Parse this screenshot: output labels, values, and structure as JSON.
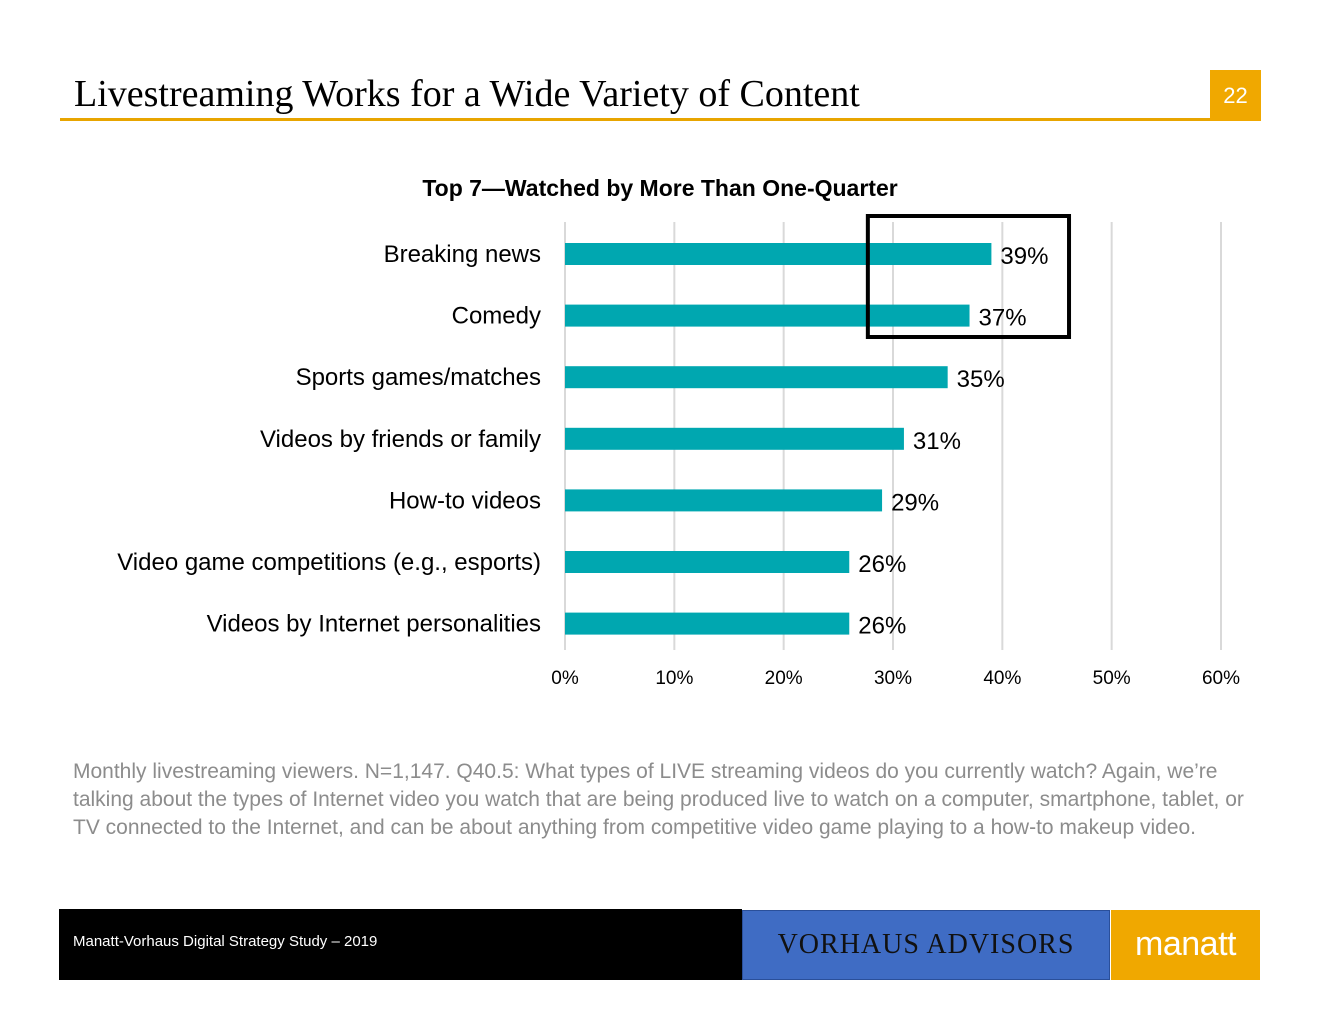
{
  "slide": {
    "title": "Livestreaming Works for a Wide Variety of Content",
    "page_number": "22"
  },
  "chart_data": {
    "type": "bar",
    "orientation": "horizontal",
    "title": "Top 7—Watched by More Than One-Quarter",
    "categories": [
      "Breaking news",
      "Comedy",
      "Sports games/matches",
      "Videos by friends or family",
      "How-to videos",
      "Video game competitions (e.g., esports)",
      "Videos by Internet personalities"
    ],
    "values": [
      39,
      37,
      35,
      31,
      29,
      26,
      26
    ],
    "data_labels": [
      "39%",
      "37%",
      "35%",
      "31%",
      "29%",
      "26%",
      "26%"
    ],
    "xlim": [
      0,
      60
    ],
    "x_ticks": [
      0,
      10,
      20,
      30,
      40,
      50,
      60
    ],
    "x_tick_labels": [
      "0%",
      "10%",
      "20%",
      "30%",
      "40%",
      "50%",
      "60%"
    ],
    "xlabel": "",
    "ylabel": "",
    "grid": "vertical",
    "bar_color": "#00a7b0",
    "highlight": {
      "categories": [
        "Breaking news",
        "Comedy"
      ],
      "style": "black outline box"
    }
  },
  "footnote": "Monthly livestreaming viewers. N=1,147. Q40.5: What types of LIVE streaming videos do you currently watch? Again, we’re talking about the types of Internet video you watch that are being produced live to watch on a computer, smartphone, tablet, or TV connected to the Internet, and can be about anything from competitive video game playing to a how-to makeup video.",
  "footer": {
    "study_text": "Manatt-Vorhaus Digital Strategy Study – 2019",
    "logo_vorhaus": "VORHAUS ADVISORS",
    "logo_manatt": "manatt"
  },
  "colors": {
    "accent": "#f0a800",
    "bar": "#00a7b0",
    "vorhaus_blue": "#3f6cc4"
  }
}
